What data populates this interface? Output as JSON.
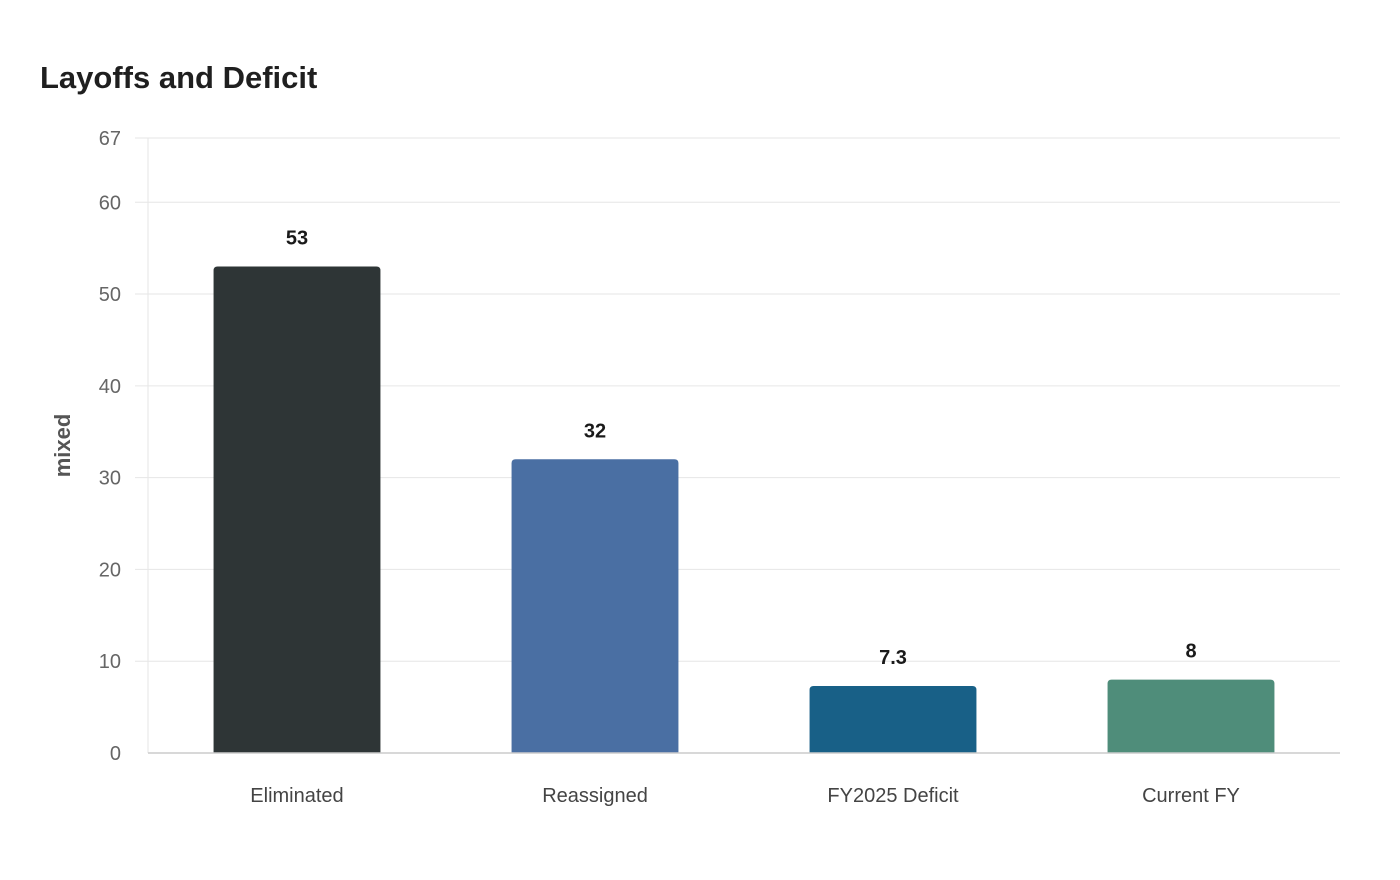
{
  "chart_data": {
    "type": "bar",
    "title": "Layoffs and Deficit",
    "xlabel": "",
    "ylabel": "mixed",
    "categories": [
      "Eliminated",
      "Reassigned",
      "FY2025 Deficit",
      "Current FY"
    ],
    "values": [
      53,
      32,
      7.3,
      8
    ],
    "value_labels": [
      "53",
      "32",
      "7.3",
      "8"
    ],
    "colors": [
      "#2e3536",
      "#4a6fa3",
      "#186087",
      "#4f8d7a"
    ],
    "ylim": [
      0,
      67
    ],
    "yticks": [
      0,
      10,
      20,
      30,
      40,
      50,
      60,
      67
    ],
    "grid": true,
    "legend": "none"
  }
}
